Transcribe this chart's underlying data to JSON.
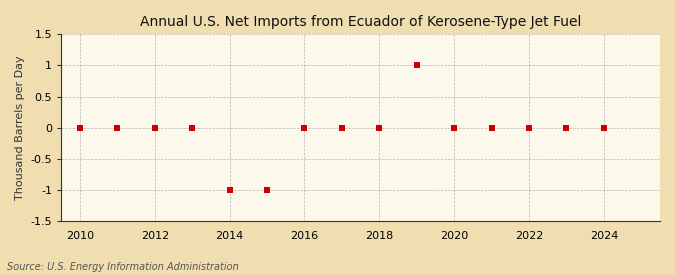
{
  "title": "Annual U.S. Net Imports from Ecuador of Kerosene-Type Jet Fuel",
  "ylabel": "Thousand Barrels per Day",
  "source": "Source: U.S. Energy Information Administration",
  "background_color": "#f0deb0",
  "plot_background_color": "#fdf8ec",
  "years": [
    2010,
    2011,
    2012,
    2013,
    2014,
    2015,
    2016,
    2017,
    2018,
    2019,
    2020,
    2021,
    2022,
    2023,
    2024
  ],
  "values": [
    0,
    0,
    0,
    0,
    -1,
    -1,
    0,
    0,
    0,
    1,
    0,
    0,
    0,
    0,
    0
  ],
  "ylim": [
    -1.5,
    1.5
  ],
  "yticks": [
    -1.5,
    -1.0,
    -0.5,
    0.0,
    0.5,
    1.0,
    1.5
  ],
  "xticks": [
    2010,
    2012,
    2014,
    2016,
    2018,
    2020,
    2022,
    2024
  ],
  "xlim": [
    2009.5,
    2025.5
  ],
  "marker_color": "#cc0000",
  "marker_size": 4,
  "grid_color": "#999999",
  "title_fontsize": 10,
  "label_fontsize": 8,
  "tick_fontsize": 8,
  "source_fontsize": 7
}
